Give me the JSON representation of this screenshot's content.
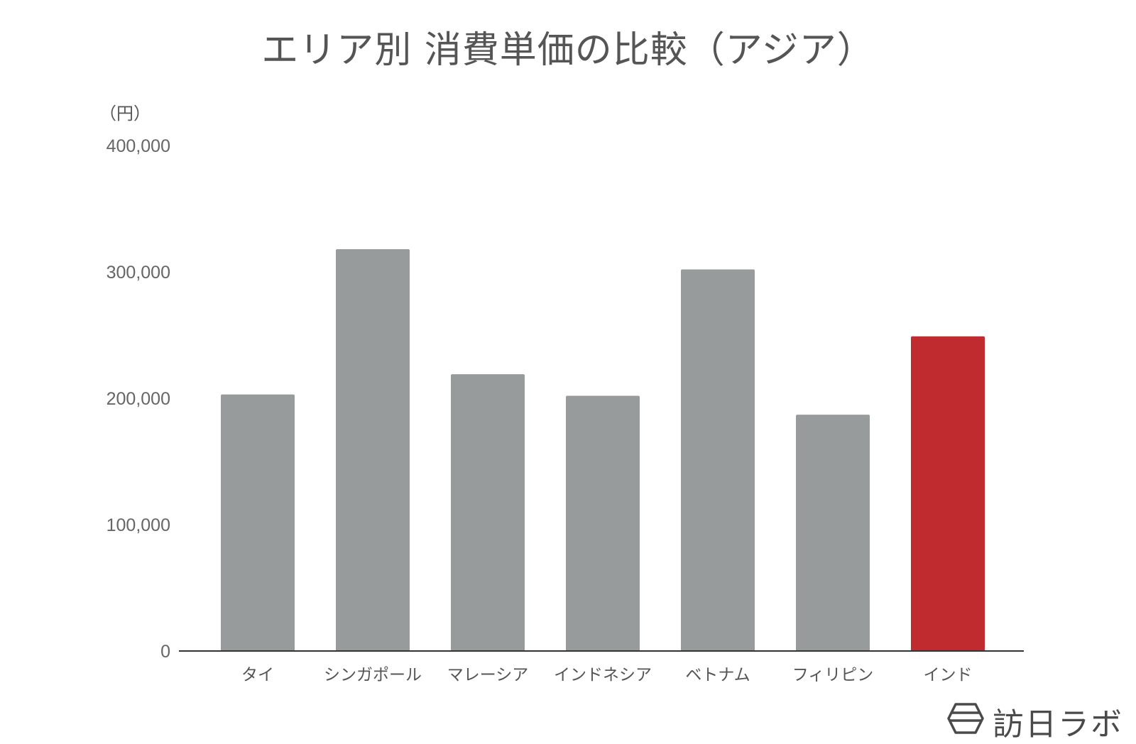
{
  "chart_data": {
    "type": "bar",
    "title": "エリア別 消費単価の比較（アジア）",
    "ylabel": "（円）",
    "xlabel": "",
    "categories": [
      "タイ",
      "シンガポール",
      "マレーシア",
      "インドネシア",
      "ベトナム",
      "フィリピン",
      "インド"
    ],
    "values": [
      203000,
      318000,
      219000,
      202000,
      302000,
      187000,
      249000
    ],
    "highlight_index": 6,
    "ylim": [
      0,
      400000
    ],
    "yticks": [
      0,
      100000,
      200000,
      300000,
      400000
    ],
    "ytick_labels": [
      "0",
      "100,000",
      "200,000",
      "300,000",
      "400,000"
    ],
    "grid": false,
    "colors": {
      "default_bar": "#979b9b",
      "highlight_bar": "#bf2b2f",
      "axis": "#333333"
    }
  },
  "logo": {
    "text": "訪日ラボ",
    "icon": "hexagon-logo-icon"
  }
}
